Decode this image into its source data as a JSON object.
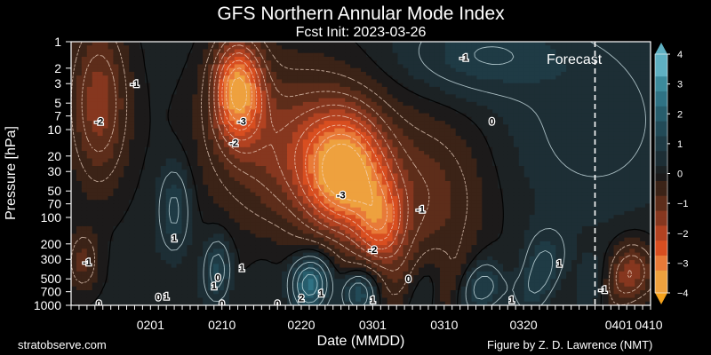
{
  "chart_data": {
    "type": "heatmap",
    "title": "GFS Northern Annular Mode Index",
    "subtitle": "Fcst Init: 2023-03-26",
    "xlabel": "Date (MMDD)",
    "ylabel": "Pressure [hPa]",
    "x_start_day": 0,
    "x_end_day": 73,
    "x_ticks": [
      {
        "label": "0201",
        "day": 10
      },
      {
        "label": "0210",
        "day": 19
      },
      {
        "label": "0220",
        "day": 29
      },
      {
        "label": "0301",
        "day": 38
      },
      {
        "label": "0310",
        "day": 47
      },
      {
        "label": "0320",
        "day": 57
      },
      {
        "label": "0401",
        "day": 69
      },
      {
        "label": "0410",
        "day": 78
      }
    ],
    "y_scale": "log",
    "y_range": [
      1000,
      1
    ],
    "y_ticks": [
      1,
      2,
      3,
      5,
      7,
      10,
      20,
      30,
      50,
      70,
      100,
      200,
      300,
      500,
      700,
      1000
    ],
    "forecast_start_day": 66,
    "forecast_label": "Forecast",
    "colorbar": {
      "ticks": [
        4,
        3,
        2,
        1,
        0,
        -1,
        -2,
        -3,
        -4
      ],
      "range": [
        -4,
        4
      ]
    },
    "contour_labels": [
      {
        "text": "-2",
        "day": 3.5,
        "p": 8
      },
      {
        "text": "-1",
        "day": 8,
        "p": 3
      },
      {
        "text": "-3",
        "day": 21.5,
        "p": 8
      },
      {
        "text": "-2",
        "day": 20.5,
        "p": 14
      },
      {
        "text": "-3",
        "day": 34,
        "p": 55
      },
      {
        "text": "-1",
        "day": 44,
        "p": 80
      },
      {
        "text": "-2",
        "day": 38,
        "p": 230
      },
      {
        "text": "0",
        "day": 53,
        "p": 8
      },
      {
        "text": "-1",
        "day": 49.5,
        "p": 1.5
      },
      {
        "text": "-1",
        "day": 2,
        "p": 320
      },
      {
        "text": "1",
        "day": 13,
        "p": 170
      },
      {
        "text": "0",
        "day": 3.5,
        "p": 950
      },
      {
        "text": "0",
        "day": 11,
        "p": 800
      },
      {
        "text": "1",
        "day": 12,
        "p": 780
      },
      {
        "text": "0",
        "day": 18.5,
        "p": 480
      },
      {
        "text": "1",
        "day": 21.5,
        "p": 370
      },
      {
        "text": "1",
        "day": 18,
        "p": 600
      },
      {
        "text": "0",
        "day": 19,
        "p": 950
      },
      {
        "text": "0",
        "day": 26,
        "p": 960
      },
      {
        "text": "2",
        "day": 29,
        "p": 820
      },
      {
        "text": "1",
        "day": 31.5,
        "p": 720
      },
      {
        "text": "1",
        "day": 38,
        "p": 860
      },
      {
        "text": "0",
        "day": 42.5,
        "p": 500
      },
      {
        "text": "1",
        "day": 55.5,
        "p": 860
      },
      {
        "text": "1",
        "day": 61.5,
        "p": 330
      },
      {
        "text": "-1",
        "day": 67,
        "p": 660
      }
    ]
  },
  "footer": {
    "left": "stratobserve.com",
    "right": "Figure by Z. D. Lawrence (NMT)"
  },
  "colors": {
    "background": "#000000",
    "cmap_negative": [
      "#1c1a1a",
      "#3b2317",
      "#5d2d1a",
      "#86371f",
      "#b24221",
      "#d84e20",
      "#e87a38",
      "#eea13e"
    ],
    "cmap_positive": [
      "#1c2224",
      "#1d2e35",
      "#1f3b45",
      "#224a57",
      "#275d6c",
      "#2f7284",
      "#3c8a9b",
      "#5fb0c2"
    ],
    "forecast_line": "#ffffff"
  }
}
